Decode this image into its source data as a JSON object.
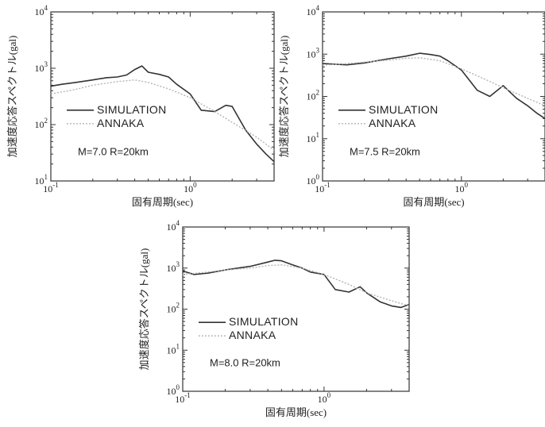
{
  "chart_data": [
    {
      "type": "line",
      "xlabel": "固有周期(sec)",
      "ylabel": "加速度応答スペクトル(gal)",
      "xscale": "log",
      "yscale": "log",
      "xlim": [
        0.1,
        4
      ],
      "ylim": [
        10,
        10000
      ],
      "x_ticks": [
        "10-1",
        "100"
      ],
      "y_ticks": [
        "101",
        "102",
        "103",
        "104"
      ],
      "legend_position": "center-left",
      "annotation": "M=7.0 R=20km",
      "series": [
        {
          "name": "SIMULATION",
          "color": "#333333",
          "x": [
            0.1,
            0.12,
            0.15,
            0.2,
            0.25,
            0.3,
            0.35,
            0.4,
            0.45,
            0.5,
            0.6,
            0.7,
            0.8,
            1.0,
            1.2,
            1.5,
            1.8,
            2.0,
            2.5,
            3.0,
            3.5,
            4.0
          ],
          "y": [
            480,
            520,
            560,
            620,
            680,
            700,
            760,
            950,
            1100,
            850,
            780,
            700,
            520,
            350,
            180,
            170,
            220,
            210,
            80,
            45,
            30,
            22
          ]
        },
        {
          "name": "ANNAKA",
          "color": "#b4b4b4",
          "x": [
            0.1,
            0.15,
            0.2,
            0.3,
            0.4,
            0.5,
            0.7,
            1.0,
            1.5,
            2.0,
            3.0,
            4.0
          ],
          "y": [
            350,
            420,
            500,
            580,
            620,
            560,
            430,
            300,
            170,
            110,
            60,
            35
          ]
        }
      ]
    },
    {
      "type": "line",
      "xlabel": "固有周期(sec)",
      "ylabel": "加速度応答スペクトル(gal)",
      "xscale": "log",
      "yscale": "log",
      "xlim": [
        0.1,
        4
      ],
      "ylim": [
        1,
        10000
      ],
      "x_ticks": [
        "10-1",
        "100"
      ],
      "y_ticks": [
        "100",
        "101",
        "102",
        "103",
        "104"
      ],
      "legend_position": "center-left",
      "annotation": "M=7.5 R=20km",
      "series": [
        {
          "name": "SIMULATION",
          "color": "#333333",
          "x": [
            0.1,
            0.15,
            0.2,
            0.3,
            0.4,
            0.5,
            0.6,
            0.7,
            0.8,
            1.0,
            1.3,
            1.6,
            2.0,
            2.5,
            3.0,
            3.5,
            4.0
          ],
          "y": [
            600,
            560,
            620,
            780,
            900,
            1050,
            980,
            900,
            700,
            420,
            140,
            100,
            180,
            90,
            60,
            40,
            30
          ]
        },
        {
          "name": "ANNAKA",
          "color": "#b4b4b4",
          "x": [
            0.1,
            0.15,
            0.2,
            0.3,
            0.4,
            0.5,
            0.7,
            1.0,
            1.5,
            2.0,
            3.0,
            4.0
          ],
          "y": [
            550,
            600,
            650,
            720,
            800,
            820,
            700,
            450,
            250,
            160,
            90,
            60
          ]
        }
      ]
    },
    {
      "type": "line",
      "xlabel": "固有周期(sec)",
      "ylabel": "加速度応答スペクトル(gal)",
      "xscale": "log",
      "yscale": "log",
      "xlim": [
        0.1,
        4
      ],
      "ylim": [
        1,
        10000
      ],
      "x_ticks": [
        "10-1",
        "100"
      ],
      "y_ticks": [
        "100",
        "101",
        "102",
        "103",
        "104"
      ],
      "legend_position": "center-left",
      "annotation": "M=8.0 R=20km",
      "series": [
        {
          "name": "SIMULATION",
          "color": "#333333",
          "x": [
            0.1,
            0.12,
            0.15,
            0.2,
            0.3,
            0.4,
            0.45,
            0.5,
            0.6,
            0.7,
            0.8,
            1.0,
            1.2,
            1.5,
            1.8,
            2.0,
            2.5,
            3.0,
            3.5,
            4.0
          ],
          "y": [
            850,
            700,
            750,
            900,
            1100,
            1400,
            1550,
            1500,
            1200,
            1000,
            800,
            700,
            300,
            260,
            350,
            250,
            150,
            120,
            110,
            130
          ]
        },
        {
          "name": "ANNAKA",
          "color": "#b4b4b4",
          "x": [
            0.1,
            0.15,
            0.2,
            0.3,
            0.4,
            0.5,
            0.7,
            1.0,
            1.5,
            2.0,
            3.0,
            4.0
          ],
          "y": [
            700,
            800,
            900,
            1000,
            1150,
            1200,
            1000,
            700,
            400,
            250,
            160,
            120
          ]
        }
      ]
    }
  ]
}
